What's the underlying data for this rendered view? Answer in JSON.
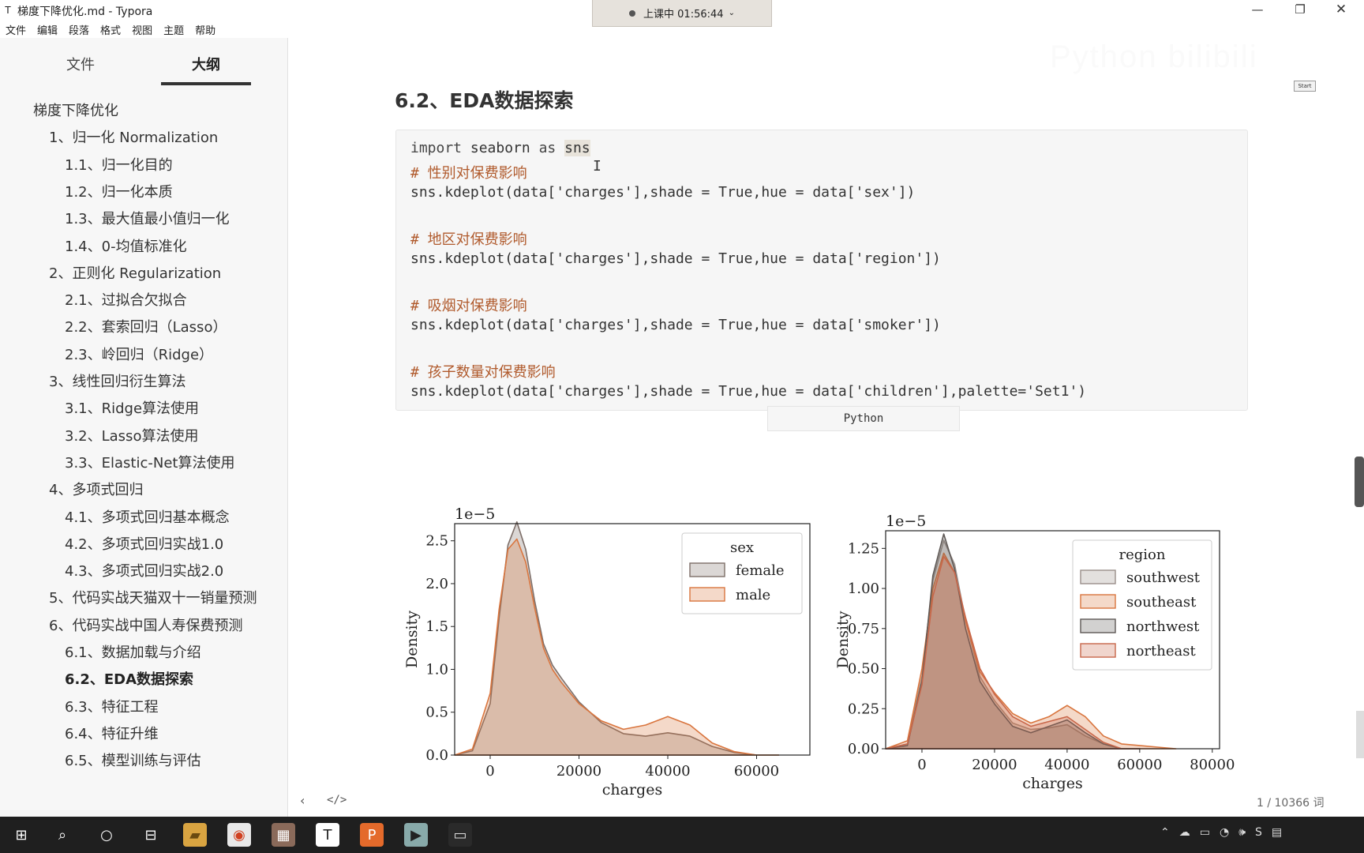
{
  "window": {
    "icon": "T",
    "title": "梯度下降优化.md - Typora",
    "minimize": "—",
    "maximize": "❐",
    "close": "✕"
  },
  "recording": {
    "label": "上课中 01:56:44",
    "chevron": "⌄"
  },
  "menu": [
    "文件",
    "编辑",
    "段落",
    "格式",
    "视图",
    "主题",
    "帮助"
  ],
  "sidebar": {
    "tabs": {
      "files": "文件",
      "outline": "大纲"
    },
    "outline": [
      {
        "text": "梯度下降优化",
        "level": 0
      },
      {
        "text": "1、归一化 Normalization",
        "level": 1
      },
      {
        "text": "1.1、归一化目的",
        "level": 2
      },
      {
        "text": "1.2、归一化本质",
        "level": 2
      },
      {
        "text": "1.3、最大值最小值归一化",
        "level": 2
      },
      {
        "text": "1.4、0-均值标准化",
        "level": 2
      },
      {
        "text": "2、正则化 Regularization",
        "level": 1
      },
      {
        "text": "2.1、过拟合欠拟合",
        "level": 2
      },
      {
        "text": "2.2、套索回归（Lasso）",
        "level": 2
      },
      {
        "text": "2.3、岭回归（Ridge）",
        "level": 2
      },
      {
        "text": "3、线性回归衍生算法",
        "level": 1
      },
      {
        "text": "3.1、Ridge算法使用",
        "level": 2
      },
      {
        "text": "3.2、Lasso算法使用",
        "level": 2
      },
      {
        "text": "3.3、Elastic-Net算法使用",
        "level": 2
      },
      {
        "text": "4、多项式回归",
        "level": 1
      },
      {
        "text": "4.1、多项式回归基本概念",
        "level": 2
      },
      {
        "text": "4.2、多项式回归实战1.0",
        "level": 2
      },
      {
        "text": "4.3、多项式回归实战2.0",
        "level": 2
      },
      {
        "text": "5、代码实战天猫双十一销量预测",
        "level": 1
      },
      {
        "text": "6、代码实战中国人寿保费预测",
        "level": 1
      },
      {
        "text": "6.1、数据加载与介绍",
        "level": 2
      },
      {
        "text": "6.2、EDA数据探索",
        "level": 2,
        "active": true
      },
      {
        "text": "6.3、特征工程",
        "level": 2
      },
      {
        "text": "6.4、特征升维",
        "level": 2
      },
      {
        "text": "6.5、模型训练与评估",
        "level": 2
      }
    ]
  },
  "main": {
    "heading": "6.2、EDA数据探索",
    "code": {
      "import_kw": "import",
      "import_rest": " seaborn ",
      "as_kw": "as",
      "alias": "sns",
      "lines": [
        "# 性别对保费影响",
        "sns.kdeplot(data['charges'],shade = True,hue = data['sex'])",
        "# 地区对保费影响",
        "sns.kdeplot(data['charges'],shade = True,hue = data['region'])",
        "# 吸烟对保费影响",
        "sns.kdeplot(data['charges'],shade = True,hue = data['smoker'])",
        "# 孩子数量对保费影响",
        "sns.kdeplot(data['charges'],shade = True,hue = data['children'],palette='Set1')"
      ],
      "language": "Python"
    },
    "cursor": "I"
  },
  "chart_data": [
    {
      "type": "area",
      "offset_label": "1e−5",
      "xlabel": "charges",
      "ylabel": "Density",
      "xlim": [
        -8000,
        72000
      ],
      "ylim": [
        0,
        2.7
      ],
      "xticks": [
        0,
        20000,
        40000,
        60000
      ],
      "yticks": [
        0.0,
        0.5,
        1.0,
        1.5,
        2.0,
        2.5
      ],
      "ytick_labels": [
        "0.0",
        "0.5",
        "1.0",
        "1.5",
        "2.0",
        "2.5"
      ],
      "legend": {
        "title": "sex",
        "placement": "top-right"
      },
      "colors": {
        "female": "#7d6e68",
        "male": "#d9753e"
      },
      "series": [
        {
          "name": "female",
          "x": [
            -8000,
            -4000,
            0,
            2000,
            4000,
            6000,
            8000,
            10000,
            12000,
            14000,
            16000,
            20000,
            25000,
            30000,
            35000,
            40000,
            45000,
            50000,
            55000,
            60000,
            65000
          ],
          "values": [
            0.0,
            0.05,
            0.6,
            1.6,
            2.45,
            2.72,
            2.4,
            1.8,
            1.3,
            1.05,
            0.9,
            0.62,
            0.38,
            0.25,
            0.22,
            0.26,
            0.22,
            0.1,
            0.03,
            0.0,
            0.0
          ]
        },
        {
          "name": "male",
          "x": [
            -8000,
            -4000,
            0,
            2000,
            4000,
            6000,
            8000,
            10000,
            12000,
            14000,
            16000,
            20000,
            25000,
            30000,
            35000,
            40000,
            45000,
            50000,
            55000,
            60000,
            65000
          ],
          "values": [
            0.0,
            0.07,
            0.72,
            1.7,
            2.4,
            2.52,
            2.25,
            1.72,
            1.25,
            1.0,
            0.85,
            0.6,
            0.4,
            0.3,
            0.35,
            0.45,
            0.35,
            0.14,
            0.04,
            0.0,
            0.0
          ]
        }
      ]
    },
    {
      "type": "area",
      "offset_label": "1e−5",
      "xlabel": "charges",
      "ylabel": "Density",
      "xlim": [
        -10000,
        82000
      ],
      "ylim": [
        0,
        1.36
      ],
      "xticks": [
        0,
        20000,
        40000,
        60000,
        80000
      ],
      "yticks": [
        0.0,
        0.25,
        0.5,
        0.75,
        1.0,
        1.25
      ],
      "ytick_labels": [
        "0.00",
        "0.25",
        "0.50",
        "0.75",
        "1.00",
        "1.25"
      ],
      "legend": {
        "title": "region",
        "placement": "top-right"
      },
      "colors": {
        "southwest": "#9a8f8a",
        "southeast": "#d9753e",
        "northwest": "#5e5855",
        "northeast": "#c8674a"
      },
      "series": [
        {
          "name": "southwest",
          "x": [
            -10000,
            -4000,
            0,
            3000,
            6000,
            9000,
            12000,
            16000,
            20000,
            25000,
            30000,
            35000,
            40000,
            45000,
            50000,
            55000,
            60000
          ],
          "values": [
            0.0,
            0.03,
            0.45,
            1.05,
            1.3,
            1.15,
            0.8,
            0.45,
            0.3,
            0.16,
            0.12,
            0.13,
            0.15,
            0.08,
            0.03,
            0.0,
            0.0
          ]
        },
        {
          "name": "southeast",
          "x": [
            -10000,
            -4000,
            0,
            3000,
            6000,
            9000,
            12000,
            16000,
            20000,
            25000,
            30000,
            35000,
            40000,
            45000,
            50000,
            55000,
            60000,
            65000,
            70000
          ],
          "values": [
            0.0,
            0.05,
            0.5,
            1.0,
            1.22,
            1.1,
            0.8,
            0.48,
            0.35,
            0.22,
            0.16,
            0.2,
            0.27,
            0.2,
            0.08,
            0.03,
            0.02,
            0.01,
            0.0
          ]
        },
        {
          "name": "northwest",
          "x": [
            -10000,
            -4000,
            0,
            3000,
            6000,
            9000,
            12000,
            16000,
            20000,
            25000,
            30000,
            35000,
            40000,
            45000,
            50000,
            55000,
            60000
          ],
          "values": [
            0.0,
            0.02,
            0.42,
            1.08,
            1.34,
            1.12,
            0.75,
            0.42,
            0.28,
            0.14,
            0.1,
            0.14,
            0.18,
            0.1,
            0.03,
            0.0,
            0.0
          ]
        },
        {
          "name": "northeast",
          "x": [
            -10000,
            -4000,
            0,
            3000,
            6000,
            9000,
            12000,
            16000,
            20000,
            25000,
            30000,
            35000,
            40000,
            45000,
            50000,
            55000,
            60000
          ],
          "values": [
            0.0,
            0.03,
            0.4,
            0.95,
            1.2,
            1.1,
            0.82,
            0.5,
            0.34,
            0.2,
            0.14,
            0.17,
            0.2,
            0.12,
            0.04,
            0.0,
            0.0
          ]
        }
      ]
    }
  ],
  "overlay": {
    "watermark": "Python bilibili",
    "start_label": "Start"
  },
  "footer": {
    "back": "‹",
    "code_toggle": "</>",
    "word_count": "1 / 10366 词"
  },
  "taskbar": {
    "start": "⊞",
    "search": "⌕",
    "cortana": "○",
    "taskview": "⊟",
    "apps": [
      "folder-app",
      "browser-app",
      "image-app",
      "typora-app",
      "ppt-app",
      "media-app",
      "window-app"
    ],
    "app_glyphs": [
      "▰",
      "◉",
      "▦",
      "T",
      "P",
      "▶",
      "▭"
    ],
    "tray": [
      "⌃",
      "☁",
      "▭",
      "◔",
      "🕪",
      "S",
      "▤"
    ]
  }
}
